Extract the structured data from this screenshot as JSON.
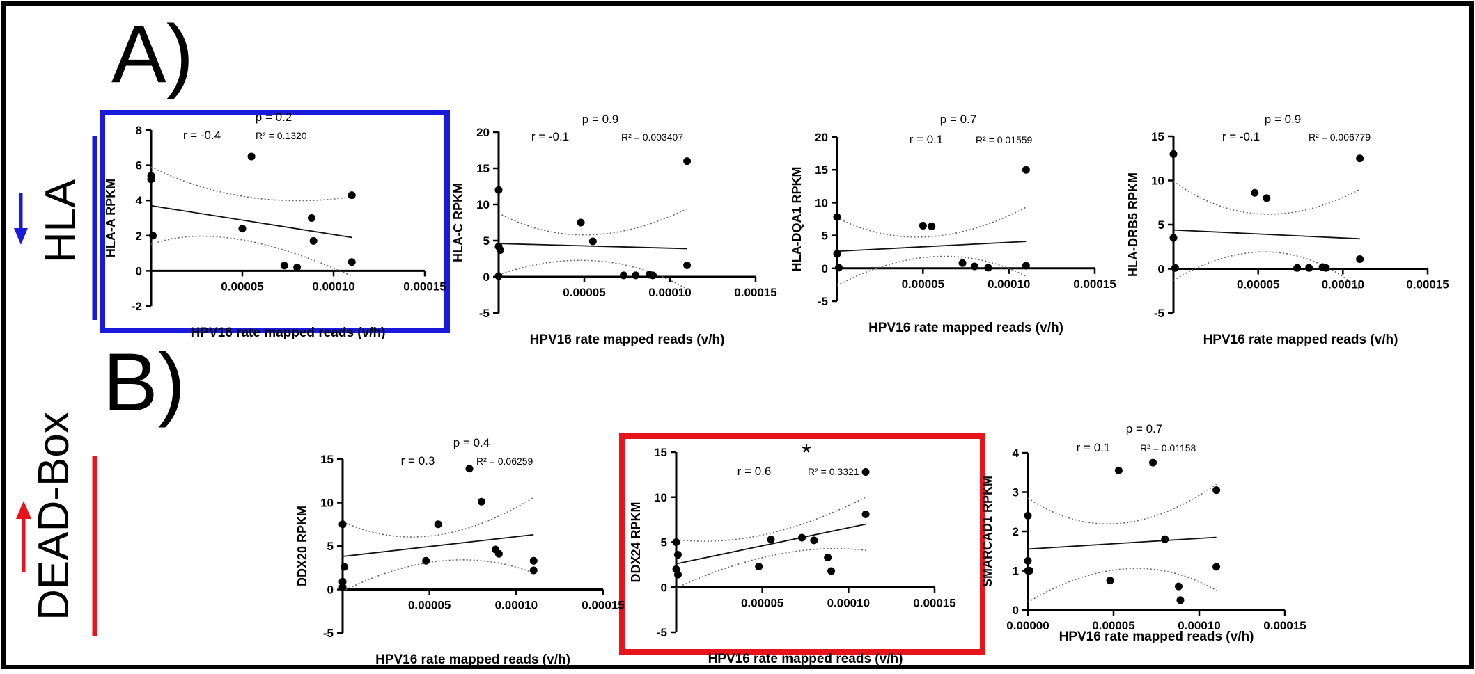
{
  "sections": {
    "a": {
      "letter": "A)",
      "group_label": "HLA",
      "arrow": "down",
      "color": "#1a1adc"
    },
    "b": {
      "letter": "B)",
      "group_label": "DEAD-Box",
      "arrow": "up",
      "color": "#e8141c"
    }
  },
  "colors": {
    "highlight_blue": "#1a1adc",
    "highlight_red": "#e8141c",
    "ink": "#000000"
  },
  "chart_data": [
    {
      "type": "scatter",
      "id": "hla-a",
      "ylabel": "HLA-A RPKM",
      "xlabel": "HPV16 rate mapped reads (v/h)",
      "p_text": "p = 0.2",
      "r_text": "r = -0.4",
      "r2_text": "R² = 0.1320",
      "xlim": [
        0,
        0.00015
      ],
      "ylim": [
        -2,
        8
      ],
      "xticks": [
        "0.00005",
        "0.00010",
        "0.00015"
      ],
      "yticks": [
        "-2",
        "0",
        "2",
        "4",
        "6",
        "8"
      ],
      "points": [
        [
          0,
          5.4
        ],
        [
          0,
          5.2
        ],
        [
          1e-06,
          2.0
        ],
        [
          5e-05,
          2.4
        ],
        [
          5.5e-05,
          6.5
        ],
        [
          7.3e-05,
          0.3
        ],
        [
          8e-05,
          0.2
        ],
        [
          8.8e-05,
          3.0
        ],
        [
          8.9e-05,
          1.7
        ],
        [
          0.00011,
          4.3
        ],
        [
          0.00011,
          0.5
        ]
      ],
      "fit": [
        [
          0,
          3.7
        ],
        [
          0.00011,
          1.9
        ]
      ],
      "ci_upper": [
        [
          0,
          5.9
        ],
        [
          5e-05,
          4.2
        ],
        [
          0.00011,
          4.2
        ]
      ],
      "ci_lower": [
        [
          0,
          1.5
        ],
        [
          4e-05,
          1.8
        ],
        [
          0.00011,
          -0.3
        ]
      ],
      "highlight": "blue",
      "star": ""
    },
    {
      "type": "scatter",
      "id": "hla-c",
      "ylabel": "HLA-C RPKM",
      "xlabel": "HPV16 rate mapped reads (v/h)",
      "p_text": "p = 0.9",
      "r_text": "r = -0.1",
      "r2_text": "R² = 0.003407",
      "xlim": [
        0,
        0.00015
      ],
      "ylim": [
        -5,
        20
      ],
      "xticks": [
        "0.00005",
        "0.00010",
        "0.00015"
      ],
      "yticks": [
        "-5",
        "0",
        "5",
        "10",
        "15",
        "20"
      ],
      "points": [
        [
          0,
          12
        ],
        [
          0,
          4.2
        ],
        [
          1e-06,
          3.7
        ],
        [
          0,
          0.1
        ],
        [
          4.8e-05,
          7.5
        ],
        [
          5.5e-05,
          4.9
        ],
        [
          7.3e-05,
          0.2
        ],
        [
          8e-05,
          0.2
        ],
        [
          8.8e-05,
          0.3
        ],
        [
          9e-05,
          0.2
        ],
        [
          0.00011,
          16
        ],
        [
          0.00011,
          1.6
        ]
      ],
      "fit": [
        [
          0,
          4.6
        ],
        [
          0.00011,
          3.9
        ]
      ],
      "ci_upper": [
        [
          0,
          8.8
        ],
        [
          5e-05,
          5.8
        ],
        [
          0.00011,
          9.4
        ]
      ],
      "ci_lower": [
        [
          0,
          0.3
        ],
        [
          6e-05,
          2.2
        ],
        [
          0.00011,
          -1.7
        ]
      ],
      "highlight": "",
      "star": ""
    },
    {
      "type": "scatter",
      "id": "hla-dqa1",
      "ylabel": "HLA-DQA1 RPKM",
      "xlabel": "HPV16 rate mapped reads (v/h)",
      "p_text": "p = 0.7",
      "r_text": "r = 0.1",
      "r2_text": "R² = 0.01559",
      "xlim": [
        0,
        0.00015
      ],
      "ylim": [
        -5,
        20
      ],
      "xticks": [
        "0.00005",
        "0.00010",
        "0.00015"
      ],
      "yticks": [
        "-5",
        "0",
        "5",
        "10",
        "15",
        "20"
      ],
      "points": [
        [
          0,
          7.8
        ],
        [
          0,
          2.2
        ],
        [
          1e-06,
          0.1
        ],
        [
          5e-05,
          6.5
        ],
        [
          5.5e-05,
          6.4
        ],
        [
          7.3e-05,
          0.8
        ],
        [
          8e-05,
          0.3
        ],
        [
          8.8e-05,
          0.1
        ],
        [
          0.00011,
          15
        ],
        [
          0.00011,
          0.4
        ]
      ],
      "fit": [
        [
          0,
          2.6
        ],
        [
          0.00011,
          4.1
        ]
      ],
      "ci_upper": [
        [
          0,
          7.7
        ],
        [
          5e-05,
          4.8
        ],
        [
          0.00011,
          9.3
        ]
      ],
      "ci_lower": [
        [
          0,
          -2.6
        ],
        [
          6e-05,
          1.8
        ],
        [
          0.00011,
          -1.2
        ]
      ],
      "highlight": "",
      "star": ""
    },
    {
      "type": "scatter",
      "id": "hla-drb5",
      "ylabel": "HLA-DRB5 RPKM",
      "xlabel": "HPV16 rate mapped reads (v/h)",
      "p_text": "p = 0.9",
      "r_text": "r = -0.1",
      "r2_text": "R² = 0.006779",
      "xlim": [
        0,
        0.00015
      ],
      "ylim": [
        -5,
        15
      ],
      "xticks": [
        "0.00005",
        "0.00010",
        "0.00015"
      ],
      "yticks": [
        "-5",
        "0",
        "5",
        "10",
        "15"
      ],
      "points": [
        [
          0,
          13
        ],
        [
          0,
          3.5
        ],
        [
          1e-06,
          0.1
        ],
        [
          4.8e-05,
          8.6
        ],
        [
          5.5e-05,
          8.0
        ],
        [
          7.3e-05,
          0.1
        ],
        [
          8e-05,
          0.1
        ],
        [
          8.8e-05,
          0.2
        ],
        [
          9e-05,
          0.1
        ],
        [
          0.00011,
          12.5
        ],
        [
          0.00011,
          1.1
        ]
      ],
      "fit": [
        [
          0,
          4.4
        ],
        [
          0.00011,
          3.4
        ]
      ],
      "ci_upper": [
        [
          0,
          9.9
        ],
        [
          5e-05,
          6.2
        ],
        [
          0.00011,
          9.0
        ]
      ],
      "ci_lower": [
        [
          0,
          -1.3
        ],
        [
          6e-05,
          1.9
        ],
        [
          0.00011,
          -2.3
        ]
      ],
      "highlight": "",
      "star": ""
    },
    {
      "type": "scatter",
      "id": "ddx20",
      "ylabel": "DDX20 RPKM",
      "xlabel": "HPV16 rate mapped reads (v/h)",
      "p_text": "p = 0.4",
      "r_text": "r = 0.3",
      "r2_text": "R² = 0.06259",
      "xlim": [
        0,
        0.00015
      ],
      "ylim": [
        -5,
        15
      ],
      "xticks": [
        "0.00005",
        "0.00010",
        "0.00015"
      ],
      "yticks": [
        "-5",
        "0",
        "5",
        "10",
        "15"
      ],
      "points": [
        [
          0,
          7.5
        ],
        [
          1e-06,
          2.6
        ],
        [
          0,
          0.9
        ],
        [
          0,
          0.3
        ],
        [
          4.8e-05,
          3.3
        ],
        [
          5.5e-05,
          7.5
        ],
        [
          7.3e-05,
          13.9
        ],
        [
          8e-05,
          10.1
        ],
        [
          8.8e-05,
          4.6
        ],
        [
          9e-05,
          4.1
        ],
        [
          0.00011,
          3.3
        ],
        [
          0.00011,
          2.2
        ]
      ],
      "fit": [
        [
          0,
          3.8
        ],
        [
          0.00011,
          6.3
        ]
      ],
      "ci_upper": [
        [
          0,
          7.8
        ],
        [
          5e-05,
          6.2
        ],
        [
          0.00011,
          10.6
        ]
      ],
      "ci_lower": [
        [
          0,
          -0.2
        ],
        [
          6e-05,
          3.3
        ],
        [
          0.00011,
          1.9
        ]
      ],
      "highlight": "",
      "star": ""
    },
    {
      "type": "scatter",
      "id": "ddx24",
      "ylabel": "DDX24 RPKM",
      "xlabel": "HPV16 rate mapped reads (v/h)",
      "p_text": "",
      "r_text": "r = 0.6",
      "r2_text": "R² = 0.3321",
      "xlim": [
        0,
        0.00015
      ],
      "ylim": [
        -5,
        15
      ],
      "xticks": [
        "0.00005",
        "0.00010",
        "0.00015"
      ],
      "yticks": [
        "-5",
        "0",
        "5",
        "10",
        "15"
      ],
      "points": [
        [
          0,
          5.0
        ],
        [
          1e-06,
          3.6
        ],
        [
          0,
          2.0
        ],
        [
          1e-06,
          1.4
        ],
        [
          4.8e-05,
          2.3
        ],
        [
          5.5e-05,
          5.3
        ],
        [
          7.3e-05,
          5.5
        ],
        [
          8e-05,
          5.2
        ],
        [
          8.8e-05,
          3.3
        ],
        [
          9e-05,
          1.8
        ],
        [
          0.00011,
          12.8
        ],
        [
          0.00011,
          8.1
        ]
      ],
      "fit": [
        [
          0,
          2.6
        ],
        [
          0.00011,
          7.0
        ]
      ],
      "ci_upper": [
        [
          0,
          5.3
        ],
        [
          5e-05,
          5.9
        ],
        [
          0.00011,
          10.0
        ]
      ],
      "ci_lower": [
        [
          0,
          -0.1
        ],
        [
          6e-05,
          3.6
        ],
        [
          0.00011,
          4.1
        ]
      ],
      "highlight": "red",
      "star": "*"
    },
    {
      "type": "scatter",
      "id": "smarcad1",
      "ylabel": "SMARCAD1 RPKM",
      "xlabel": "HPV16 rate mapped reads (v/h)",
      "p_text": "p = 0.7",
      "r_text": "r = 0.1",
      "r2_text": "R² = 0.01158",
      "xlim": [
        0,
        0.00015
      ],
      "ylim": [
        0,
        4
      ],
      "xticks": [
        "0.00000",
        "0.00005",
        "0.00010",
        "0.00015"
      ],
      "yticks": [
        "0",
        "1",
        "2",
        "3",
        "4"
      ],
      "points": [
        [
          0,
          2.4
        ],
        [
          0,
          1.25
        ],
        [
          0,
          1.0
        ],
        [
          1e-06,
          1.0
        ],
        [
          4.8e-05,
          0.75
        ],
        [
          5.3e-05,
          3.55
        ],
        [
          7.3e-05,
          3.75
        ],
        [
          8e-05,
          1.8
        ],
        [
          8.8e-05,
          0.6
        ],
        [
          8.9e-05,
          0.25
        ],
        [
          0.00011,
          3.05
        ],
        [
          0.00011,
          1.1
        ]
      ],
      "fit": [
        [
          0,
          1.55
        ],
        [
          0.00011,
          1.85
        ]
      ],
      "ci_upper": [
        [
          0,
          2.85
        ],
        [
          5e-05,
          2.2
        ],
        [
          0.00011,
          3.2
        ]
      ],
      "ci_lower": [
        [
          0,
          0.2
        ],
        [
          6e-05,
          1.05
        ],
        [
          0.00011,
          0.5
        ]
      ],
      "highlight": "",
      "star": ""
    }
  ]
}
